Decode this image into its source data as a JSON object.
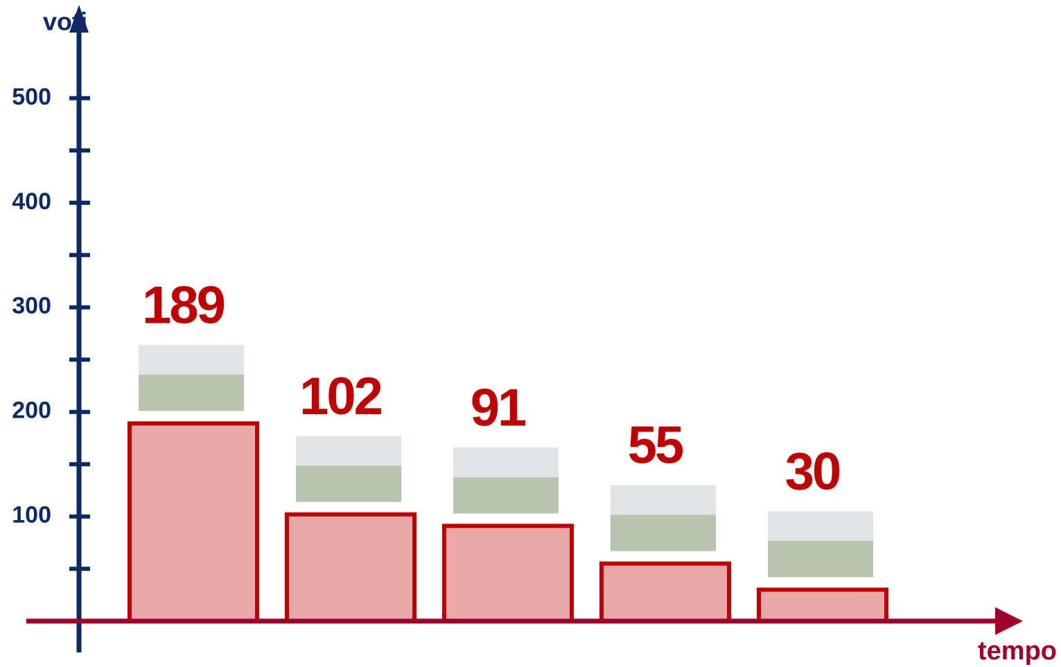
{
  "chart_data": {
    "type": "bar",
    "ylabel": "voti",
    "xlabel": "tempo",
    "categories": [
      null,
      null,
      null,
      null,
      null
    ],
    "values": [
      189,
      102,
      91,
      55,
      30
    ],
    "color": "#e8a8a8",
    "edge_color": "#c00000",
    "label_color": "#c00000",
    "ylim": [
      -30,
      580
    ],
    "yticks": [
      100,
      200,
      300,
      400,
      500
    ],
    "yticks_minor": [
      50,
      150,
      250,
      350,
      450
    ],
    "grid": false
  }
}
